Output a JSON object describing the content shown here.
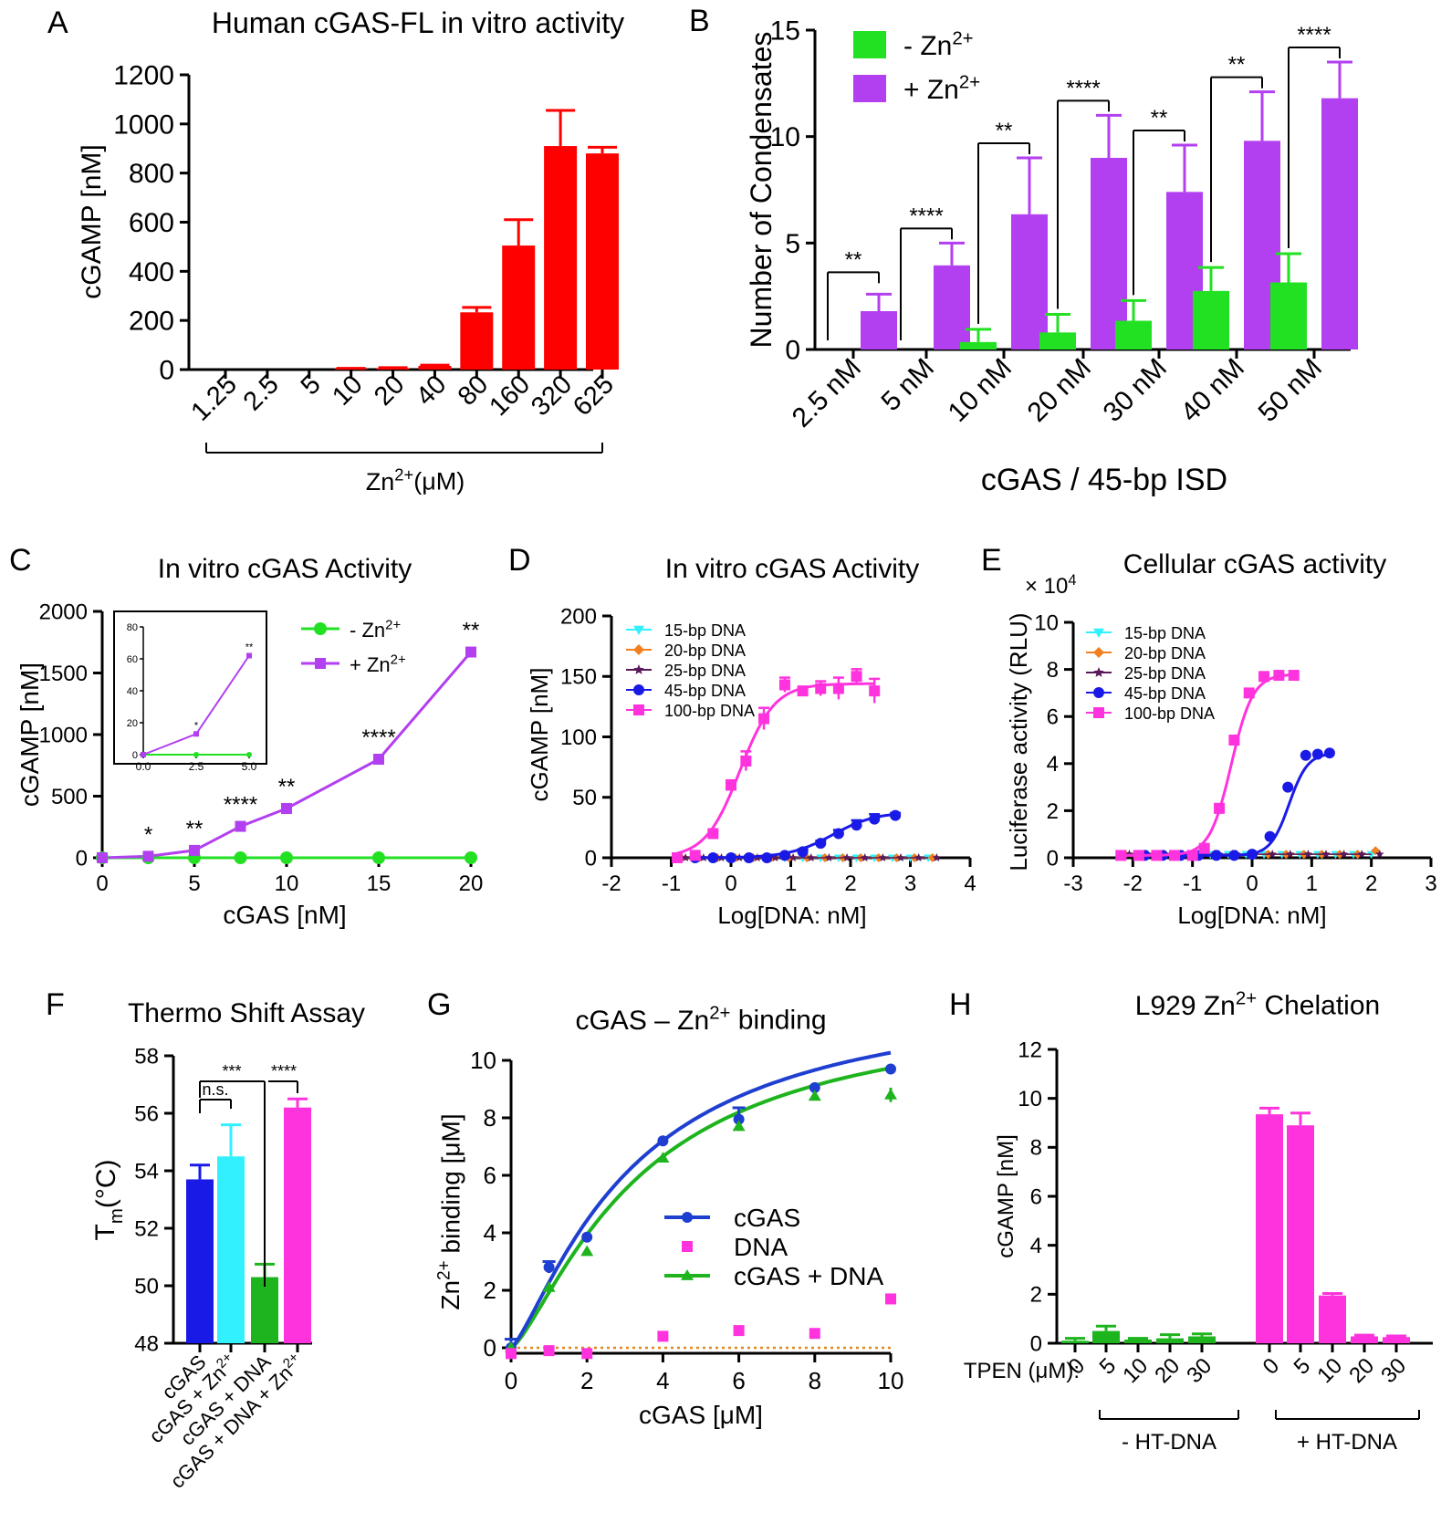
{
  "colors": {
    "red": "#ff0000",
    "green": "#22e022",
    "purple": "#b23ff0",
    "magenta": "#ff33dd",
    "blue": "#1a1ae6",
    "cyan": "#33f0ff",
    "orange": "#f28020",
    "darkpurple": "#5a1a5a",
    "green2": "#1eb41e",
    "navy": "#1f3fd0",
    "dotted": "#e08a1e"
  },
  "chart_data": [
    {
      "id": "A",
      "type": "bar",
      "panel_label": "A",
      "title": "Human cGAS-FL in vitro activity",
      "ylabel": "cGAMP [nM]",
      "xlabel_base": "Zn",
      "xlabel_sup": "2+",
      "xlabel_unit": "(μM)",
      "categories": [
        "1.25",
        "2.5",
        "5",
        "10",
        "20",
        "40",
        "80",
        "160",
        "320",
        "625"
      ],
      "values": [
        0,
        0,
        0,
        3,
        6,
        15,
        233,
        505,
        910,
        880
      ],
      "errors": [
        0,
        0,
        0,
        2,
        2,
        3,
        20,
        105,
        145,
        25
      ],
      "ylim": [
        0,
        1200
      ],
      "yticks": [
        "0",
        "200",
        "400",
        "600",
        "800",
        "1000",
        "1200"
      ]
    },
    {
      "id": "B",
      "type": "bar",
      "panel_label": "B",
      "ylabel": "Number of Condensates",
      "xlabel": "cGAS / 45-bp ISD",
      "categories": [
        "2.5 nM",
        "5 nM",
        "10 nM",
        "20 nM",
        "30 nM",
        "40 nM",
        "50 nM"
      ],
      "series": [
        {
          "name": "- Zn2+",
          "label_base": "-  Zn",
          "label_sup": "2+",
          "values": [
            0,
            0,
            0.35,
            0.8,
            1.35,
            2.75,
            3.15
          ],
          "errors": [
            0,
            0,
            0.6,
            0.85,
            0.95,
            1.1,
            1.35
          ]
        },
        {
          "name": "+ Zn2+",
          "label_base": "+ Zn",
          "label_sup": "2+",
          "values": [
            1.8,
            3.95,
            6.35,
            9.0,
            7.4,
            9.8,
            11.8
          ],
          "errors": [
            0.8,
            1.05,
            2.65,
            2.0,
            2.2,
            2.3,
            1.7
          ]
        }
      ],
      "significance": [
        "**",
        "****",
        "**",
        "****",
        "**",
        "**",
        "****"
      ],
      "ylim": [
        0,
        15
      ],
      "yticks": [
        "0",
        "5",
        "10",
        "15"
      ]
    },
    {
      "id": "C",
      "type": "line",
      "panel_label": "C",
      "title": "In vitro cGAS Activity",
      "ylabel": "cGAMP [nM]",
      "xlabel": "cGAS [nM]",
      "x": [
        0,
        2.5,
        5,
        7.5,
        10,
        15,
        20
      ],
      "series": [
        {
          "name": "- Zn2+",
          "label_base": "- Zn",
          "label_sup": "2+",
          "values": [
            0,
            0,
            0,
            0,
            0,
            0,
            0
          ]
        },
        {
          "name": "+ Zn2+",
          "label_base": "+ Zn",
          "label_sup": "2+",
          "values": [
            0,
            12,
            60,
            255,
            400,
            800,
            1670
          ]
        }
      ],
      "significance": [
        "",
        "*",
        "**",
        "****",
        "**",
        "****",
        "**"
      ],
      "xlim": [
        0,
        20
      ],
      "ylim": [
        0,
        2000
      ],
      "xticks": [
        "0",
        "5",
        "10",
        "15",
        "20"
      ],
      "yticks": [
        "0",
        "500",
        "1000",
        "1500",
        "2000"
      ],
      "inset": {
        "x": [
          0,
          2.5,
          5
        ],
        "purple": [
          0,
          13,
          62
        ],
        "green": [
          0,
          0,
          0
        ],
        "significance": [
          "",
          "*",
          "**"
        ],
        "xticks": [
          "0.0",
          "2.5",
          "5.0"
        ],
        "yticks": [
          "0",
          "20",
          "40",
          "60",
          "80"
        ],
        "ylim": [
          0,
          80
        ],
        "xlim": [
          0,
          5
        ]
      }
    },
    {
      "id": "D",
      "type": "scatter",
      "panel_label": "D",
      "title": "In vitro cGAS Activity",
      "ylabel": "cGAMP [nM]",
      "xlabel": "Log[DNA: nM]",
      "xlim": [
        -2,
        4
      ],
      "ylim": [
        0,
        200
      ],
      "xticks": [
        "-2",
        "-1",
        "0",
        "1",
        "2",
        "3",
        "4"
      ],
      "yticks": [
        "0",
        "50",
        "100",
        "150",
        "200"
      ],
      "series": [
        {
          "name": "15-bp DNA"
        },
        {
          "name": "20-bp DNA"
        },
        {
          "name": "25-bp DNA"
        },
        {
          "name": "45-bp DNA"
        },
        {
          "name": "100-bp DNA"
        }
      ],
      "pink_x": [
        -0.9,
        -0.6,
        -0.3,
        0,
        0.25,
        0.55,
        0.9,
        1.2,
        1.5,
        1.8,
        2.1,
        2.4
      ],
      "pink_y": [
        0,
        2,
        20,
        60,
        80,
        115,
        143,
        138,
        140,
        140,
        150,
        138
      ],
      "pink_err": [
        0,
        0,
        2,
        4,
        8,
        9,
        6,
        2,
        6,
        9,
        6,
        10
      ],
      "blue_x": [
        -0.6,
        -0.3,
        0,
        0.3,
        0.6,
        0.9,
        1.2,
        1.5,
        1.8,
        2.1,
        2.4,
        2.75
      ],
      "blue_y": [
        0,
        0,
        0,
        0,
        0,
        2,
        5,
        12,
        20,
        27,
        32,
        35
      ],
      "blue_err": [
        0,
        0,
        0,
        0,
        0,
        1,
        2,
        2,
        3,
        4,
        4,
        2
      ]
    },
    {
      "id": "E",
      "type": "scatter",
      "panel_label": "E",
      "title": "Cellular cGAS activity",
      "ylabel": "Luciferase activity (RLU)",
      "xlabel": "Log[DNA: nM]",
      "scale_base": "× 10",
      "scale_sup": "4",
      "xlim": [
        -3,
        3
      ],
      "ylim": [
        0,
        10
      ],
      "xticks": [
        "-3",
        "-2",
        "-1",
        "0",
        "1",
        "2",
        "3"
      ],
      "yticks": [
        "0",
        "2",
        "4",
        "6",
        "8",
        "10"
      ],
      "series": [
        {
          "name": "15-bp DNA"
        },
        {
          "name": "20-bp DNA"
        },
        {
          "name": "25-bp DNA"
        },
        {
          "name": "45-bp DNA"
        },
        {
          "name": "100-bp DNA"
        }
      ],
      "pink_x": [
        -2.2,
        -1.9,
        -1.6,
        -1.3,
        -1.0,
        -0.8,
        -0.55,
        -0.3,
        -0.05,
        0.2,
        0.45,
        0.7
      ],
      "pink_y": [
        0.1,
        0.1,
        0.1,
        0.1,
        0.1,
        0.4,
        2.1,
        5.0,
        7.0,
        7.7,
        7.75,
        7.75
      ],
      "blue_x": [
        -1.8,
        -1.5,
        -1.2,
        -0.9,
        -0.6,
        -0.3,
        0,
        0.3,
        0.6,
        0.9,
        1.1,
        1.3
      ],
      "blue_y": [
        0.1,
        0.1,
        0.1,
        0.1,
        0.1,
        0.1,
        0.15,
        0.9,
        3.0,
        4.35,
        4.4,
        4.45
      ]
    },
    {
      "id": "F",
      "type": "bar",
      "panel_label": "F",
      "title": "Thermo Shift Assay",
      "ylabel_base": "T",
      "ylabel_sub": "m",
      "ylabel_unit": "(°C)",
      "categories": [
        "cGAS",
        "cGAS + Zn2+",
        "cGAS + DNA",
        "cGAS + DNA + Zn2+"
      ],
      "cat_base": [
        "cGAS",
        "cGAS + Zn",
        "cGAS + DNA",
        "cGAS + DNA + Zn"
      ],
      "cat_sup": [
        "",
        "2+",
        "",
        "2+"
      ],
      "values": [
        53.7,
        54.5,
        50.3,
        56.2
      ],
      "errors": [
        0.5,
        1.1,
        0.45,
        0.3
      ],
      "ylim": [
        48,
        58
      ],
      "yticks": [
        "48",
        "50",
        "52",
        "54",
        "56",
        "58"
      ],
      "significance": [
        "n.s.",
        "***",
        "****"
      ]
    },
    {
      "id": "G",
      "type": "line",
      "panel_label": "G",
      "title_base": "cGAS – Zn",
      "title_sup": "2+",
      "title_end": " binding",
      "ylabel_base": "Zn",
      "ylabel_sup": "2+",
      "ylabel_end": " binding [μM]",
      "xlabel": "cGAS [μM]",
      "xlim": [
        0,
        10
      ],
      "ylim": [
        0,
        10
      ],
      "xticks": [
        "0",
        "2",
        "4",
        "6",
        "8",
        "10"
      ],
      "yticks": [
        "0",
        "2",
        "4",
        "6",
        "8",
        "10"
      ],
      "series": [
        {
          "name": "cGAS",
          "x": [
            0,
            1,
            2,
            4,
            6,
            8,
            10
          ],
          "values": [
            0,
            2.8,
            3.85,
            7.2,
            7.95,
            9.05,
            9.7
          ],
          "errors": [
            0.3,
            0.2,
            0,
            0,
            0.4,
            0,
            0
          ]
        },
        {
          "name": "DNA",
          "x": [
            0,
            1,
            2,
            4,
            6,
            8,
            10
          ],
          "values": [
            -0.2,
            -0.1,
            -0.2,
            0.4,
            0.6,
            0.5,
            1.7
          ]
        },
        {
          "name": "cGAS + DNA",
          "x": [
            0,
            1,
            2,
            4,
            6,
            8,
            10
          ],
          "values": [
            0,
            2.1,
            3.35,
            6.6,
            7.7,
            8.75,
            8.8
          ],
          "errors": [
            0,
            0,
            0,
            0,
            0,
            0,
            0.25
          ]
        }
      ]
    },
    {
      "id": "H",
      "type": "bar",
      "panel_label": "H",
      "title_base": "L929 Zn",
      "title_sup": "2+",
      "title_end": " Chelation",
      "ylabel": "cGAMP [nM]",
      "tpen_label": "TPEN (μM):",
      "categories": [
        "0",
        "5",
        "10",
        "20",
        "30",
        "0",
        "5",
        "10",
        "20",
        "30"
      ],
      "values": [
        0.1,
        0.5,
        0.15,
        0.2,
        0.28,
        9.35,
        8.9,
        1.95,
        0.28,
        0.25
      ],
      "errors": [
        0.1,
        0.2,
        0.05,
        0.15,
        0.1,
        0.25,
        0.5,
        0.08,
        0.05,
        0.05
      ],
      "groups": [
        "- HT-DNA",
        "+ HT-DNA"
      ],
      "ylim": [
        0,
        12
      ],
      "yticks": [
        "0",
        "2",
        "4",
        "6",
        "8",
        "10",
        "12"
      ]
    }
  ]
}
